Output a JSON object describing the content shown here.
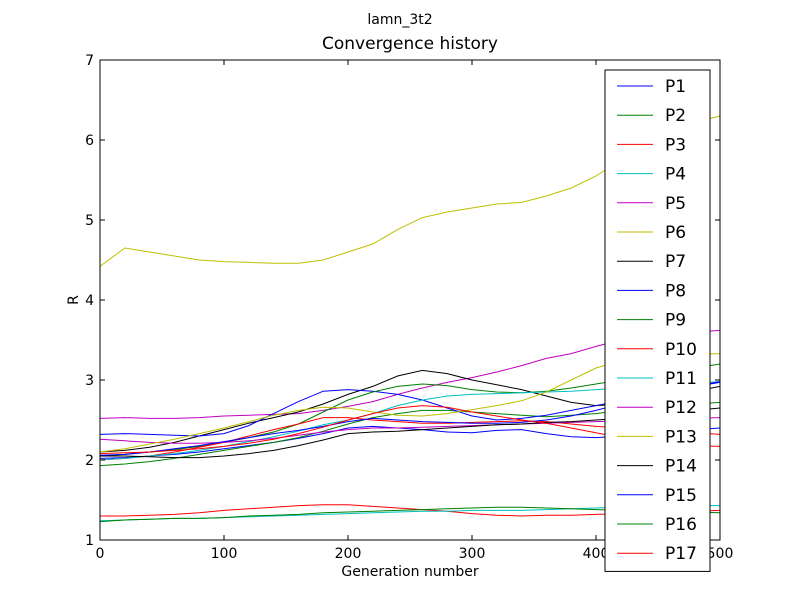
{
  "chart_data": {
    "type": "line",
    "suptitle": "lamn_3t2",
    "title": "Convergence history",
    "xlabel": "Generation number",
    "ylabel": "R",
    "xlim": [
      0,
      500
    ],
    "ylim": [
      1,
      7
    ],
    "xticks": [
      0,
      100,
      200,
      300,
      400,
      500
    ],
    "xtick_labels": [
      "0",
      "100",
      "200",
      "300",
      "400",
      "500"
    ],
    "yticks": [
      1,
      2,
      3,
      4,
      5,
      6,
      7
    ],
    "ytick_labels": [
      "1",
      "2",
      "3",
      "4",
      "5",
      "6",
      "7"
    ],
    "grid": false,
    "legend_position": "right",
    "x": [
      0,
      20,
      40,
      60,
      80,
      100,
      120,
      140,
      160,
      180,
      200,
      220,
      240,
      260,
      280,
      300,
      320,
      340,
      360,
      380,
      400,
      420,
      440,
      460,
      480,
      500
    ],
    "series": [
      {
        "name": "P1",
        "color": "#0000ff",
        "values": [
          2.02,
          2.03,
          2.05,
          2.07,
          2.1,
          2.14,
          2.18,
          2.22,
          2.27,
          2.33,
          2.4,
          2.42,
          2.4,
          2.38,
          2.35,
          2.34,
          2.37,
          2.38,
          2.33,
          2.29,
          2.28,
          2.3,
          2.32,
          2.35,
          2.38,
          2.4
        ]
      },
      {
        "name": "P2",
        "color": "#008000",
        "values": [
          1.93,
          1.95,
          1.98,
          2.02,
          2.07,
          2.12,
          2.17,
          2.22,
          2.28,
          2.36,
          2.45,
          2.53,
          2.58,
          2.62,
          2.62,
          2.6,
          2.58,
          2.56,
          2.54,
          2.56,
          2.58,
          2.62,
          2.65,
          2.68,
          2.7,
          2.72
        ]
      },
      {
        "name": "P3",
        "color": "#ff0000",
        "values": [
          1.3,
          1.3,
          1.31,
          1.32,
          1.34,
          1.37,
          1.39,
          1.41,
          1.43,
          1.44,
          1.44,
          1.42,
          1.4,
          1.38,
          1.36,
          1.33,
          1.31,
          1.3,
          1.31,
          1.31,
          1.32,
          1.33,
          1.34,
          1.35,
          1.36,
          1.37
        ]
      },
      {
        "name": "P4",
        "color": "#00bfbf",
        "values": [
          1.24,
          1.25,
          1.26,
          1.27,
          1.27,
          1.28,
          1.29,
          1.3,
          1.31,
          1.32,
          1.33,
          1.34,
          1.35,
          1.36,
          1.36,
          1.37,
          1.37,
          1.37,
          1.38,
          1.39,
          1.4,
          1.41,
          1.42,
          1.42,
          1.43,
          1.43
        ]
      },
      {
        "name": "P5",
        "color": "#bf00bf",
        "values": [
          2.52,
          2.53,
          2.52,
          2.52,
          2.53,
          2.55,
          2.56,
          2.57,
          2.58,
          2.62,
          2.67,
          2.73,
          2.82,
          2.9,
          2.97,
          3.03,
          3.1,
          3.18,
          3.27,
          3.33,
          3.42,
          3.5,
          3.55,
          3.58,
          3.6,
          3.62
        ]
      },
      {
        "name": "P6",
        "color": "#bfbf00",
        "values": [
          4.42,
          4.65,
          4.6,
          4.55,
          4.5,
          4.48,
          4.47,
          4.46,
          4.46,
          4.5,
          4.6,
          4.7,
          4.88,
          5.03,
          5.1,
          5.15,
          5.2,
          5.22,
          5.3,
          5.4,
          5.55,
          5.75,
          5.95,
          6.1,
          6.22,
          6.3
        ]
      },
      {
        "name": "P7",
        "color": "#000000",
        "values": [
          2.1,
          2.12,
          2.16,
          2.22,
          2.3,
          2.38,
          2.46,
          2.53,
          2.6,
          2.7,
          2.82,
          2.92,
          3.05,
          3.12,
          3.08,
          3.0,
          2.94,
          2.88,
          2.8,
          2.72,
          2.68,
          2.7,
          2.74,
          2.8,
          2.86,
          2.92
        ]
      },
      {
        "name": "P8",
        "color": "#0000ff",
        "values": [
          2.32,
          2.33,
          2.32,
          2.31,
          2.3,
          2.33,
          2.43,
          2.58,
          2.73,
          2.86,
          2.88,
          2.86,
          2.82,
          2.75,
          2.65,
          2.55,
          2.5,
          2.52,
          2.56,
          2.62,
          2.68,
          2.74,
          2.8,
          2.86,
          2.92,
          2.97
        ]
      },
      {
        "name": "P9",
        "color": "#008000",
        "values": [
          2.05,
          2.07,
          2.1,
          2.13,
          2.17,
          2.22,
          2.28,
          2.35,
          2.45,
          2.6,
          2.75,
          2.85,
          2.92,
          2.95,
          2.93,
          2.88,
          2.85,
          2.84,
          2.86,
          2.9,
          2.95,
          3.0,
          3.05,
          3.1,
          3.15,
          3.2
        ]
      },
      {
        "name": "P10",
        "color": "#ff0000",
        "values": [
          2.0,
          2.02,
          2.05,
          2.1,
          2.16,
          2.22,
          2.3,
          2.38,
          2.45,
          2.53,
          2.53,
          2.5,
          2.48,
          2.46,
          2.46,
          2.47,
          2.48,
          2.49,
          2.48,
          2.45,
          2.42,
          2.4,
          2.38,
          2.36,
          2.34,
          2.32
        ]
      },
      {
        "name": "P11",
        "color": "#00bfbf",
        "values": [
          2.0,
          2.02,
          2.05,
          2.08,
          2.12,
          2.17,
          2.23,
          2.29,
          2.36,
          2.44,
          2.5,
          2.58,
          2.68,
          2.75,
          2.8,
          2.82,
          2.83,
          2.84,
          2.85,
          2.86,
          2.88,
          2.9,
          2.92,
          2.94,
          2.96,
          2.98
        ]
      },
      {
        "name": "P12",
        "color": "#bf00bf",
        "values": [
          2.26,
          2.24,
          2.22,
          2.21,
          2.21,
          2.22,
          2.24,
          2.27,
          2.31,
          2.35,
          2.38,
          2.4,
          2.4,
          2.41,
          2.42,
          2.43,
          2.44,
          2.45,
          2.46,
          2.47,
          2.48,
          2.49,
          2.5,
          2.51,
          2.52,
          2.53
        ]
      },
      {
        "name": "P13",
        "color": "#bfbf00",
        "values": [
          2.1,
          2.14,
          2.2,
          2.26,
          2.33,
          2.4,
          2.48,
          2.56,
          2.62,
          2.66,
          2.65,
          2.6,
          2.56,
          2.55,
          2.58,
          2.63,
          2.68,
          2.74,
          2.85,
          3.0,
          3.15,
          3.24,
          3.28,
          3.3,
          3.32,
          3.33
        ]
      },
      {
        "name": "P14",
        "color": "#000000",
        "values": [
          2.05,
          2.05,
          2.04,
          2.03,
          2.03,
          2.05,
          2.08,
          2.12,
          2.18,
          2.25,
          2.33,
          2.35,
          2.36,
          2.38,
          2.4,
          2.42,
          2.44,
          2.45,
          2.47,
          2.48,
          2.5,
          2.52,
          2.55,
          2.58,
          2.62,
          2.65
        ]
      },
      {
        "name": "P15",
        "color": "#0000ff",
        "values": [
          2.06,
          2.07,
          2.1,
          2.14,
          2.18,
          2.23,
          2.28,
          2.33,
          2.37,
          2.42,
          2.48,
          2.52,
          2.5,
          2.48,
          2.47,
          2.46,
          2.46,
          2.47,
          2.5,
          2.55,
          2.62,
          2.7,
          2.78,
          2.86,
          2.92,
          2.98
        ]
      },
      {
        "name": "P16",
        "color": "#008000",
        "values": [
          1.23,
          1.25,
          1.26,
          1.27,
          1.27,
          1.28,
          1.3,
          1.31,
          1.32,
          1.34,
          1.35,
          1.36,
          1.37,
          1.38,
          1.39,
          1.4,
          1.41,
          1.41,
          1.4,
          1.39,
          1.38,
          1.37,
          1.36,
          1.35,
          1.35,
          1.34
        ]
      },
      {
        "name": "P17",
        "color": "#ff0000",
        "values": [
          2.08,
          2.09,
          2.1,
          2.12,
          2.14,
          2.17,
          2.21,
          2.26,
          2.33,
          2.41,
          2.5,
          2.58,
          2.65,
          2.68,
          2.66,
          2.6,
          2.55,
          2.5,
          2.46,
          2.4,
          2.34,
          2.28,
          2.23,
          2.2,
          2.18,
          2.17
        ]
      }
    ]
  }
}
